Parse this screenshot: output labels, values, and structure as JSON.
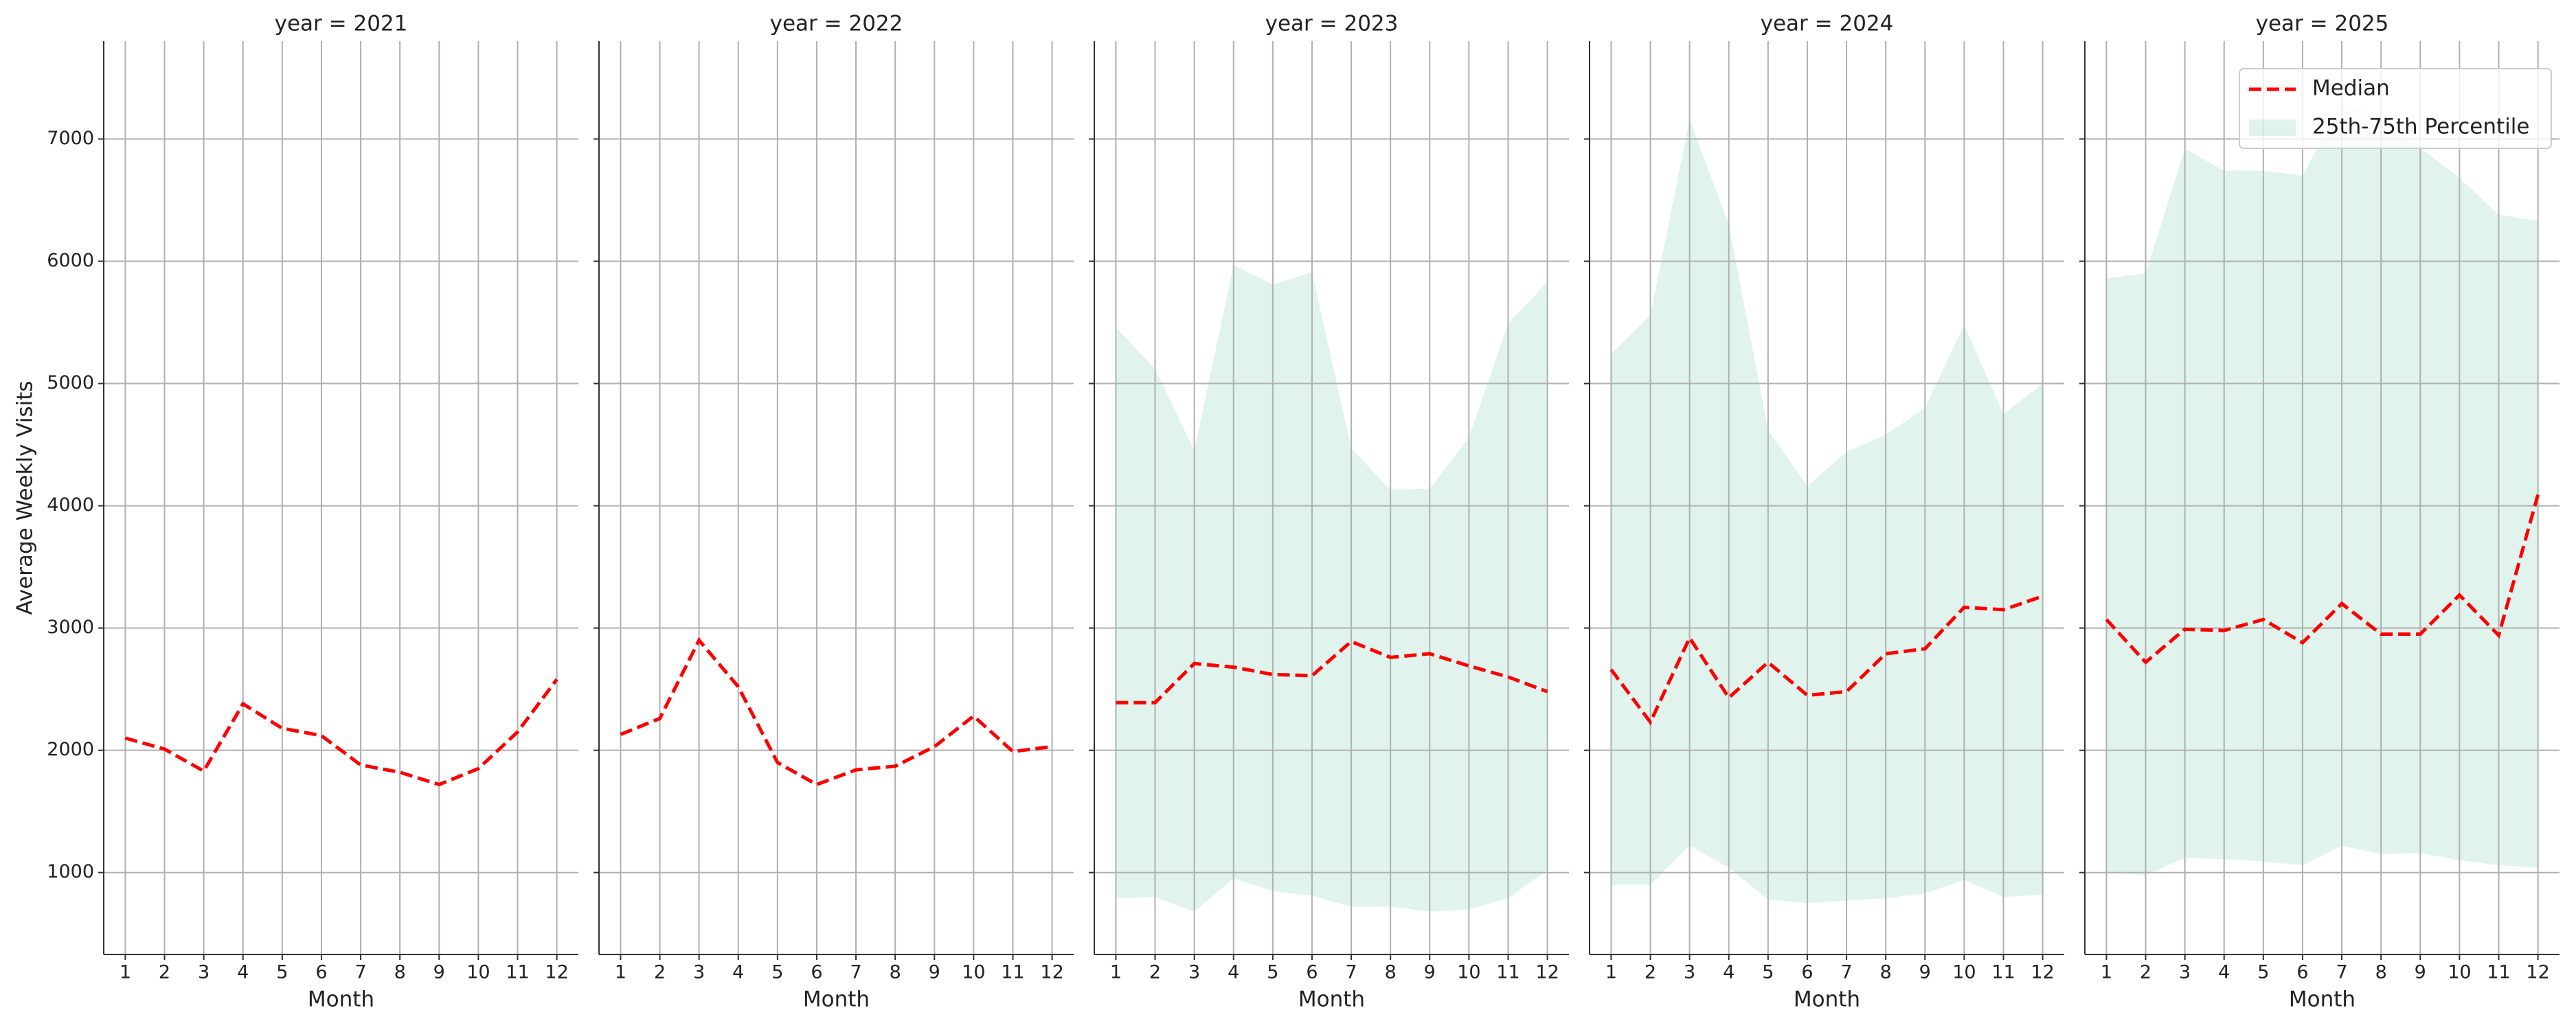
{
  "chart_data": [
    {
      "type": "line",
      "title": "year = 2021",
      "xlabel": "Month",
      "ylabel": "Average Weekly Visits",
      "x": [
        1,
        2,
        3,
        4,
        5,
        6,
        7,
        8,
        9,
        10,
        11,
        12
      ],
      "xlim": [
        0.45,
        12.55
      ],
      "ylim": [
        330,
        7800
      ],
      "yticks": [
        1000,
        2000,
        3000,
        4000,
        5000,
        6000,
        7000
      ],
      "grid": true,
      "series": [
        {
          "color": "#ff0000",
          "values": [
            2100,
            2010,
            1830,
            2380,
            2180,
            2120,
            1880,
            1820,
            1720,
            1850,
            2150,
            2580
          ]
        }
      ]
    },
    {
      "type": "line",
      "title": "year = 2022",
      "xlabel": "Month",
      "x": [
        1,
        2,
        3,
        4,
        5,
        6,
        7,
        8,
        9,
        10,
        11,
        12
      ],
      "xlim": [
        0.45,
        12.55
      ],
      "ylim": [
        330,
        7800
      ],
      "yticks": [
        1000,
        2000,
        3000,
        4000,
        5000,
        6000,
        7000
      ],
      "grid": true,
      "series": [
        {
          "color": "#ff0000",
          "values": [
            2130,
            2260,
            2900,
            2520,
            1900,
            1720,
            1840,
            1870,
            2030,
            2280,
            1990,
            2030
          ]
        }
      ]
    },
    {
      "type": "line",
      "title": "year = 2023",
      "xlabel": "Month",
      "x": [
        1,
        2,
        3,
        4,
        5,
        6,
        7,
        8,
        9,
        10,
        11,
        12
      ],
      "xlim": [
        0.45,
        12.55
      ],
      "ylim": [
        330,
        7800
      ],
      "yticks": [
        1000,
        2000,
        3000,
        4000,
        5000,
        6000,
        7000
      ],
      "grid": true,
      "band": {
        "color": "#66c2a5",
        "lower": [
          790,
          800,
          680,
          950,
          850,
          810,
          720,
          720,
          680,
          700,
          790,
          1020
        ],
        "upper": [
          5460,
          5120,
          4450,
          5970,
          5810,
          5910,
          4470,
          4130,
          4140,
          4560,
          5490,
          5830
        ]
      },
      "series": [
        {
          "color": "#ff0000",
          "values": [
            2390,
            2390,
            2710,
            2680,
            2620,
            2610,
            2890,
            2760,
            2790,
            2690,
            2600,
            2480
          ]
        }
      ]
    },
    {
      "type": "line",
      "title": "year = 2024",
      "xlabel": "Month",
      "x": [
        1,
        2,
        3,
        4,
        5,
        6,
        7,
        8,
        9,
        10,
        11,
        12
      ],
      "xlim": [
        0.45,
        12.55
      ],
      "ylim": [
        330,
        7800
      ],
      "yticks": [
        1000,
        2000,
        3000,
        4000,
        5000,
        6000,
        7000
      ],
      "grid": true,
      "band": {
        "color": "#66c2a5",
        "lower": [
          900,
          900,
          1220,
          1040,
          780,
          750,
          770,
          790,
          830,
          940,
          800,
          820
        ],
        "upper": [
          5240,
          5560,
          7160,
          6300,
          4620,
          4160,
          4440,
          4580,
          4800,
          5480,
          4750,
          5000
        ]
      },
      "series": [
        {
          "color": "#ff0000",
          "values": [
            2660,
            2230,
            2920,
            2430,
            2720,
            2450,
            2480,
            2790,
            2830,
            3170,
            3150,
            3260
          ]
        }
      ]
    },
    {
      "type": "line",
      "title": "year = 2025",
      "xlabel": "Month",
      "x": [
        1,
        2,
        3,
        4,
        5,
        6,
        7,
        8,
        9,
        10,
        11,
        12
      ],
      "xlim": [
        0.45,
        12.55
      ],
      "ylim": [
        330,
        7800
      ],
      "yticks": [
        1000,
        2000,
        3000,
        4000,
        5000,
        6000,
        7000
      ],
      "grid": true,
      "legend": "upper right",
      "band": {
        "name": "25th-75th Percentile",
        "color": "#66c2a5",
        "lower": [
          1000,
          980,
          1120,
          1110,
          1090,
          1060,
          1220,
          1150,
          1160,
          1100,
          1060,
          1040
        ],
        "upper": [
          5860,
          5900,
          6920,
          6740,
          6740,
          6700,
          7310,
          7160,
          6930,
          6680,
          6380,
          6330
        ]
      },
      "series": [
        {
          "name": "Median",
          "color": "#ff0000",
          "values": [
            3070,
            2720,
            2990,
            2980,
            3070,
            2880,
            3200,
            2950,
            2950,
            3270,
            2940,
            4090
          ]
        }
      ]
    }
  ]
}
